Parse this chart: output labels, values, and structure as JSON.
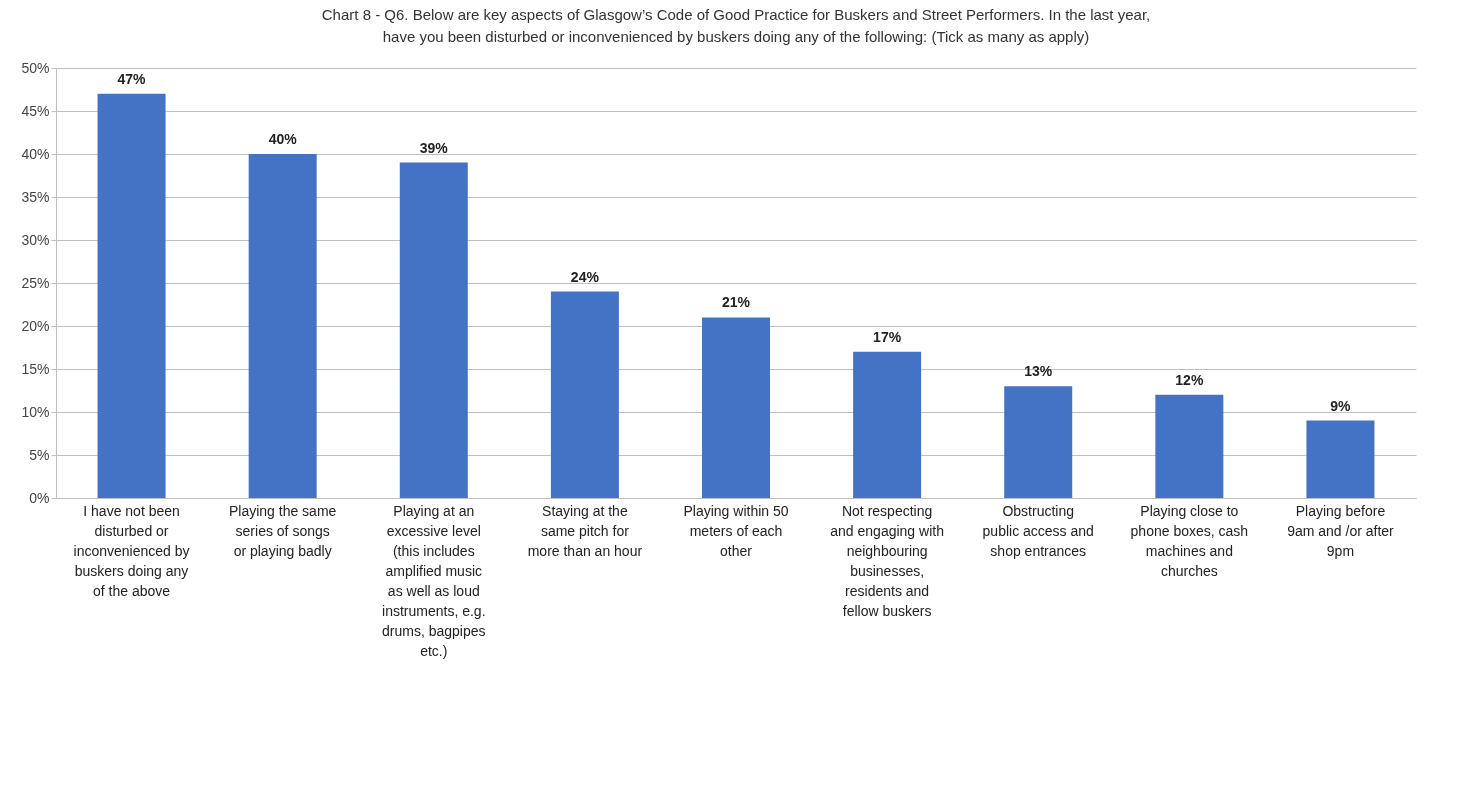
{
  "chart_data": {
    "type": "bar",
    "title": "Chart 8 - Q6. Below are key aspects of Glasgow’s Code of Good Practice for Buskers and Street Performers. In the last year, have you been disturbed or inconvenienced by buskers doing any of the following: (Tick as many as apply)",
    "categories": [
      "I have not been disturbed or inconvenienced by buskers doing any of the above",
      "Playing the same series of songs or playing badly",
      "Playing at an excessive level (this includes amplified music as well as loud instruments, e.g. drums, bagpipes etc.)",
      "Staying at the same pitch for more than an hour",
      "Playing within 50 meters of each other",
      "Not respecting and engaging with neighbouring businesses, residents and fellow buskers",
      "Obstructing public access and shop entrances",
      "Playing close to phone boxes, cash machines and churches",
      "Playing before 9am and /or after 9pm"
    ],
    "values": [
      47,
      40,
      39,
      24,
      21,
      17,
      13,
      12,
      9
    ],
    "value_labels": [
      "47%",
      "40%",
      "39%",
      "24%",
      "21%",
      "17%",
      "13%",
      "12%",
      "9%"
    ],
    "color": "#4472c4",
    "ylim": [
      0,
      50
    ],
    "yticks": [
      {
        "value": 0,
        "label": "0%"
      },
      {
        "value": 5,
        "label": "5%"
      },
      {
        "value": 10,
        "label": "10%"
      },
      {
        "value": 15,
        "label": "15%"
      },
      {
        "value": 20,
        "label": "20%"
      },
      {
        "value": 25,
        "label": "25%"
      },
      {
        "value": 30,
        "label": "30%"
      },
      {
        "value": 35,
        "label": "35%"
      },
      {
        "value": 40,
        "label": "40%"
      },
      {
        "value": 45,
        "label": "45%"
      },
      {
        "value": 50,
        "label": "50%"
      }
    ],
    "grid": true
  }
}
